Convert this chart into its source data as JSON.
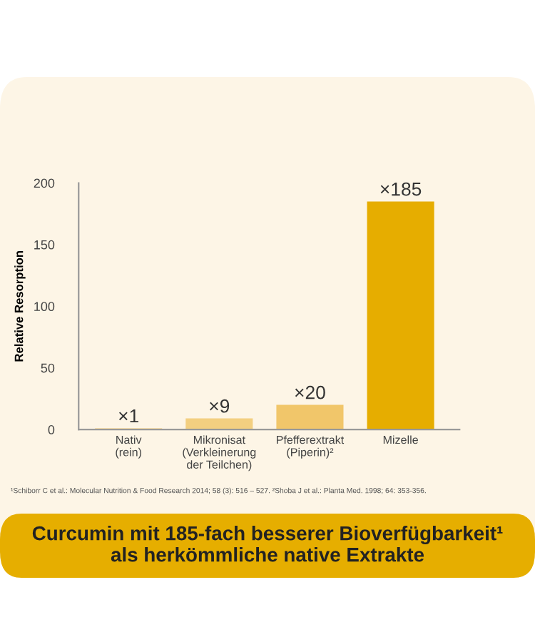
{
  "chart_data": {
    "type": "bar",
    "title": "Curcumin mit 185-fach besserer Bioverfügbarkeit¹\nals herkömmliche native Extrakte",
    "ylabel": "Relative Resorption",
    "categories": [
      "Nativ\n(rein)",
      "Mikronisat\n(Verkleinerung\nder Teilchen)",
      "Pfefferextrakt\n(Piperin)²",
      "Mizelle"
    ],
    "values": [
      1,
      9,
      20,
      185
    ],
    "colors": [
      "#f5d595",
      "#f3cf80",
      "#f1c66a",
      "#e6ad00"
    ],
    "value_labels": [
      "×1",
      "×9",
      "×20",
      "×185"
    ],
    "ylim": [
      0,
      200
    ],
    "yticks": [
      0,
      50,
      100,
      150,
      200
    ],
    "grid": false,
    "legend": false,
    "annotations": [
      "¹Schiborr C et al.: Molecular Nutrition & Food Research 2014; 58 (3): 516 – 527. ²Shoba J et al.: Planta Med. 1998; 64: 353-356."
    ]
  }
}
